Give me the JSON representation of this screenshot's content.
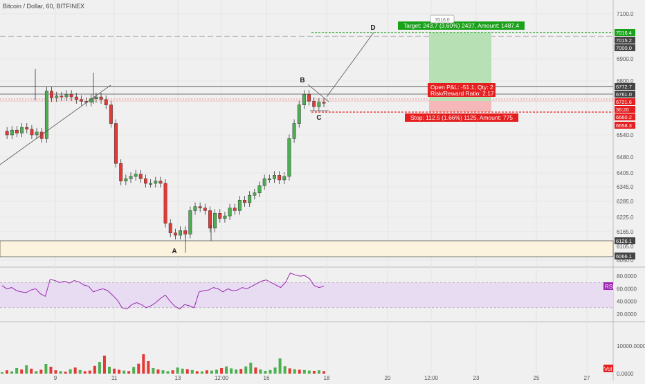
{
  "header": {
    "title": "Bitcoin / Dollar, 60, BITFINEX"
  },
  "colors": {
    "background": "#f0f0f0",
    "up": "#4caf50",
    "down": "#e53935",
    "target": "#1aa11a",
    "stop": "#e51f1f",
    "rsi": "#9c27b0",
    "axis_text": "#555555"
  },
  "chart_data": [
    {
      "type": "candlestick",
      "title": "Bitcoin / Dollar, 60, BITFINEX",
      "yticks": [
        "7100.0",
        "6900.0",
        "6800.0",
        "6540.0",
        "6480.0",
        "6405.0",
        "6345.0",
        "6285.0",
        "6225.0",
        "6165.0",
        "6105.0",
        "6050.0"
      ],
      "x_tick_labels": [
        "9",
        "11",
        "13",
        "12:00",
        "16",
        "18",
        "20",
        "12:00",
        "23",
        "25",
        "27"
      ],
      "price_labels": [
        {
          "text": "7016.4",
          "role": "target"
        },
        {
          "text": "7015.2",
          "role": "neutral"
        },
        {
          "text": "7000.0",
          "role": "neutral"
        },
        {
          "text": "6772.7",
          "role": "neutral"
        },
        {
          "text": "6761.0",
          "role": "neutral"
        },
        {
          "text": "6721.6",
          "role": "stop"
        },
        {
          "text": "36:20",
          "role": "stop"
        },
        {
          "text": "6660.2",
          "role": "stop"
        },
        {
          "text": "6658.3",
          "role": "stop"
        },
        {
          "text": "6126.1",
          "role": "neutral"
        },
        {
          "text": "6066.1",
          "role": "neutral"
        }
      ],
      "top_price_tag": "7016.0",
      "pattern_points": [
        "A",
        "B",
        "C",
        "D"
      ],
      "zones": {
        "support_top": 6126.1,
        "support_bottom": 6066.1
      },
      "position": {
        "entry": 6721.6,
        "target": 7016.4,
        "stop": 6660.2,
        "target_label": "Target: 243.7 (3.60%) 2437, Amount: 1487.4",
        "stop_label": "Stop: 112.5 (1.66%) 1125, Amount: 775",
        "pnl_label": "Open P&L: -51.1, Qty: 2",
        "rr_label": "Risk/Reward Ratio: 2.17"
      },
      "price_path": [
        6560,
        6540,
        6565,
        6550,
        6580,
        6570,
        6540,
        6555,
        6530,
        6770,
        6740,
        6750,
        6745,
        6760,
        6745,
        6730,
        6720,
        6715,
        6735,
        6745,
        6730,
        6700,
        6600,
        6450,
        6370,
        6380,
        6390,
        6400,
        6380,
        6360,
        6360,
        6370,
        6360,
        6200,
        6160,
        6150,
        6170,
        6155,
        6250,
        6265,
        6260,
        6250,
        6180,
        6240,
        6220,
        6230,
        6260,
        6250,
        6290,
        6280,
        6310,
        6320,
        6350,
        6380,
        6380,
        6395,
        6375,
        6390,
        6530,
        6600,
        6700,
        6760,
        6720,
        6690,
        6715,
        6710
      ],
      "x_range_pct": [
        0,
        100
      ],
      "grid": true
    },
    {
      "type": "line",
      "label": "RSI",
      "yticks": [
        "80.0000",
        "60.0000",
        "40.0000",
        "20.0000"
      ],
      "ylim": [
        10,
        90
      ],
      "band": [
        30,
        70
      ],
      "values": [
        65,
        60,
        62,
        57,
        55,
        54,
        58,
        60,
        52,
        48,
        75,
        73,
        70,
        72,
        69,
        73,
        71,
        66,
        64,
        55,
        58,
        60,
        57,
        50,
        42,
        30,
        28,
        35,
        38,
        35,
        30,
        33,
        38,
        45,
        50,
        40,
        32,
        28,
        35,
        33,
        30,
        55,
        57,
        58,
        62,
        60,
        55,
        60,
        57,
        58,
        62,
        60,
        64,
        68,
        72,
        74,
        70,
        66,
        62,
        70,
        85,
        82,
        80,
        81,
        76,
        65,
        62,
        64
      ]
    },
    {
      "type": "bar",
      "label": "Vol",
      "yticks": [
        "10000.0000",
        "0.0000"
      ],
      "ylim": [
        0,
        18000
      ],
      "values": [
        500,
        1200,
        800,
        2000,
        1500,
        3000,
        1800,
        900,
        1400,
        3500,
        2500,
        1200,
        900,
        700,
        1600,
        2200,
        1300,
        900,
        1100,
        2800,
        4200,
        6500,
        2500,
        1800,
        1400,
        1100,
        900,
        2400,
        3600,
        7000,
        4500,
        2000,
        1500,
        1200,
        900,
        1200,
        2200,
        1800,
        1600,
        1300,
        900,
        800,
        1200,
        1100,
        1400,
        2000,
        2600,
        1900,
        1500,
        1700,
        2600,
        3900,
        2200,
        1500,
        1000,
        1300,
        2200,
        5500,
        2700,
        1900,
        1600,
        1400,
        1300,
        1100,
        1000,
        1200,
        900
      ],
      "up": [
        true,
        false,
        true,
        true,
        false,
        true,
        false,
        true,
        false,
        true,
        false,
        false,
        true,
        false,
        true,
        false,
        true,
        false,
        false,
        false,
        true,
        false,
        true,
        false,
        false,
        true,
        false,
        true,
        false,
        false,
        false,
        true,
        false,
        true,
        true,
        false,
        true,
        true,
        false,
        true,
        false,
        true,
        false,
        true,
        true,
        false,
        true,
        true,
        true,
        false,
        true,
        true,
        false,
        true,
        true,
        true,
        true,
        true,
        true,
        false,
        true,
        false,
        true,
        true,
        false,
        true,
        false
      ]
    }
  ]
}
